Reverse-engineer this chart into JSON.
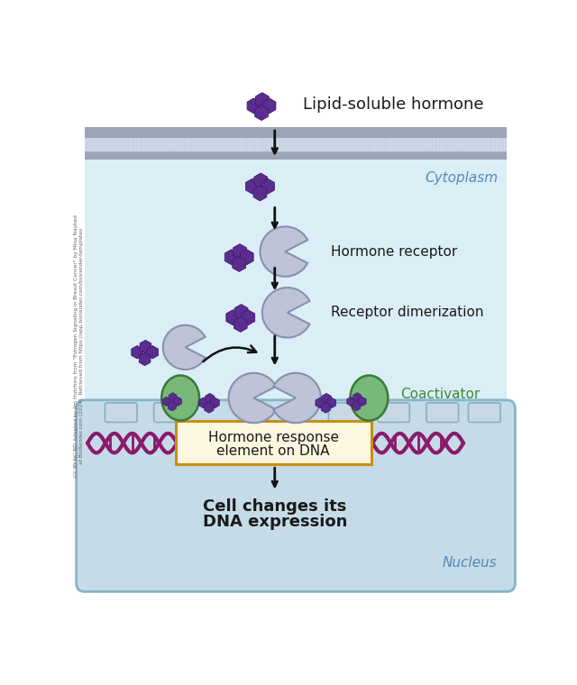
{
  "bg_color": "#ffffff",
  "cytoplasm_color": "#dbeef5",
  "nucleus_color": "#c5dce8",
  "membrane_head_color": "#9aa5b5",
  "membrane_tail_color": "#d0d8e8",
  "hormone_color": "#5b2d8e",
  "hormone_edge_color": "#3a1a6e",
  "receptor_color": "#bec3d8",
  "receptor_edge_color": "#8890b0",
  "coactivator_color": "#78b878",
  "coactivator_edge_color": "#3a7a3a",
  "dna_color": "#8b1a6b",
  "hre_box_fill": "#fdf6e0",
  "hre_box_edge": "#c89010",
  "arrow_color": "#111111",
  "text_color": "#1a1a1a",
  "cytoplasm_label_color": "#5588bb",
  "nucleus_label_color": "#5588bb",
  "coactivator_label_color": "#3a8a3a",
  "label_hormone": "Lipid-soluble hormone",
  "label_receptor": "Hormone receptor",
  "label_dimerization": "Receptor dimerization",
  "label_coactivator": "Coactivator",
  "label_hre_line1": "Hormone response",
  "label_hre_line2": "element on DNA",
  "label_cell_changes_line1": "Cell changes its",
  "label_cell_changes_line2": "DNA expression",
  "label_cytoplasm": "Cytoplasm",
  "label_nucleus": "Nucleus",
  "credit_text": "CC BY-NC-ND Adapted by Jim Hutchins from \"Estrogen Signaling in Breast Cancer\" by Mina Nashed\nat BioRender.com (2024). Retrieved from https://app.biorender.com/biorender-templates"
}
